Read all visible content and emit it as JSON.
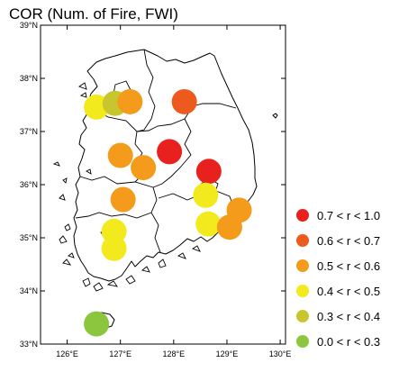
{
  "title": "COR (Num. of Fire, FWI)",
  "axes": {
    "lon_labels": [
      "126°E",
      "127°E",
      "128°E",
      "129°E",
      "130°E"
    ],
    "lat_labels": [
      "33°N",
      "34°N",
      "35°N",
      "36°N",
      "37°N",
      "38°N",
      "39°N"
    ],
    "lon_range": [
      125.5,
      130.1
    ],
    "lat_range": [
      33,
      39
    ]
  },
  "legend": [
    {
      "label": "0.7 < r < 1.0",
      "color": "#e8211f"
    },
    {
      "label": "0.6 < r < 0.7",
      "color": "#ec5a1e"
    },
    {
      "label": "0.5 < r < 0.6",
      "color": "#f49b1c"
    },
    {
      "label": "0.4 < r < 0.5",
      "color": "#f2ea1c"
    },
    {
      "label": "0.3 < r < 0.4",
      "color": "#c7c62e"
    },
    {
      "label": "0.0 < r < 0.3",
      "color": "#8cc63f"
    }
  ],
  "stations": [
    {
      "lon": 126.55,
      "lat": 37.46,
      "class": 3
    },
    {
      "lon": 126.9,
      "lat": 37.53,
      "class": 4
    },
    {
      "lon": 127.18,
      "lat": 37.56,
      "class": 2
    },
    {
      "lon": 128.2,
      "lat": 37.56,
      "class": 1
    },
    {
      "lon": 127.0,
      "lat": 36.55,
      "class": 2
    },
    {
      "lon": 127.43,
      "lat": 36.32,
      "class": 2
    },
    {
      "lon": 127.92,
      "lat": 36.62,
      "class": 0
    },
    {
      "lon": 128.66,
      "lat": 36.25,
      "class": 0
    },
    {
      "lon": 127.05,
      "lat": 35.72,
      "class": 2
    },
    {
      "lon": 128.6,
      "lat": 35.8,
      "class": 3
    },
    {
      "lon": 129.23,
      "lat": 35.52,
      "class": 2
    },
    {
      "lon": 128.65,
      "lat": 35.26,
      "class": 3
    },
    {
      "lon": 129.05,
      "lat": 35.2,
      "class": 2
    },
    {
      "lon": 126.88,
      "lat": 35.12,
      "class": 3
    },
    {
      "lon": 126.88,
      "lat": 34.8,
      "class": 3
    },
    {
      "lon": 126.55,
      "lat": 33.38,
      "class": 5
    }
  ]
}
